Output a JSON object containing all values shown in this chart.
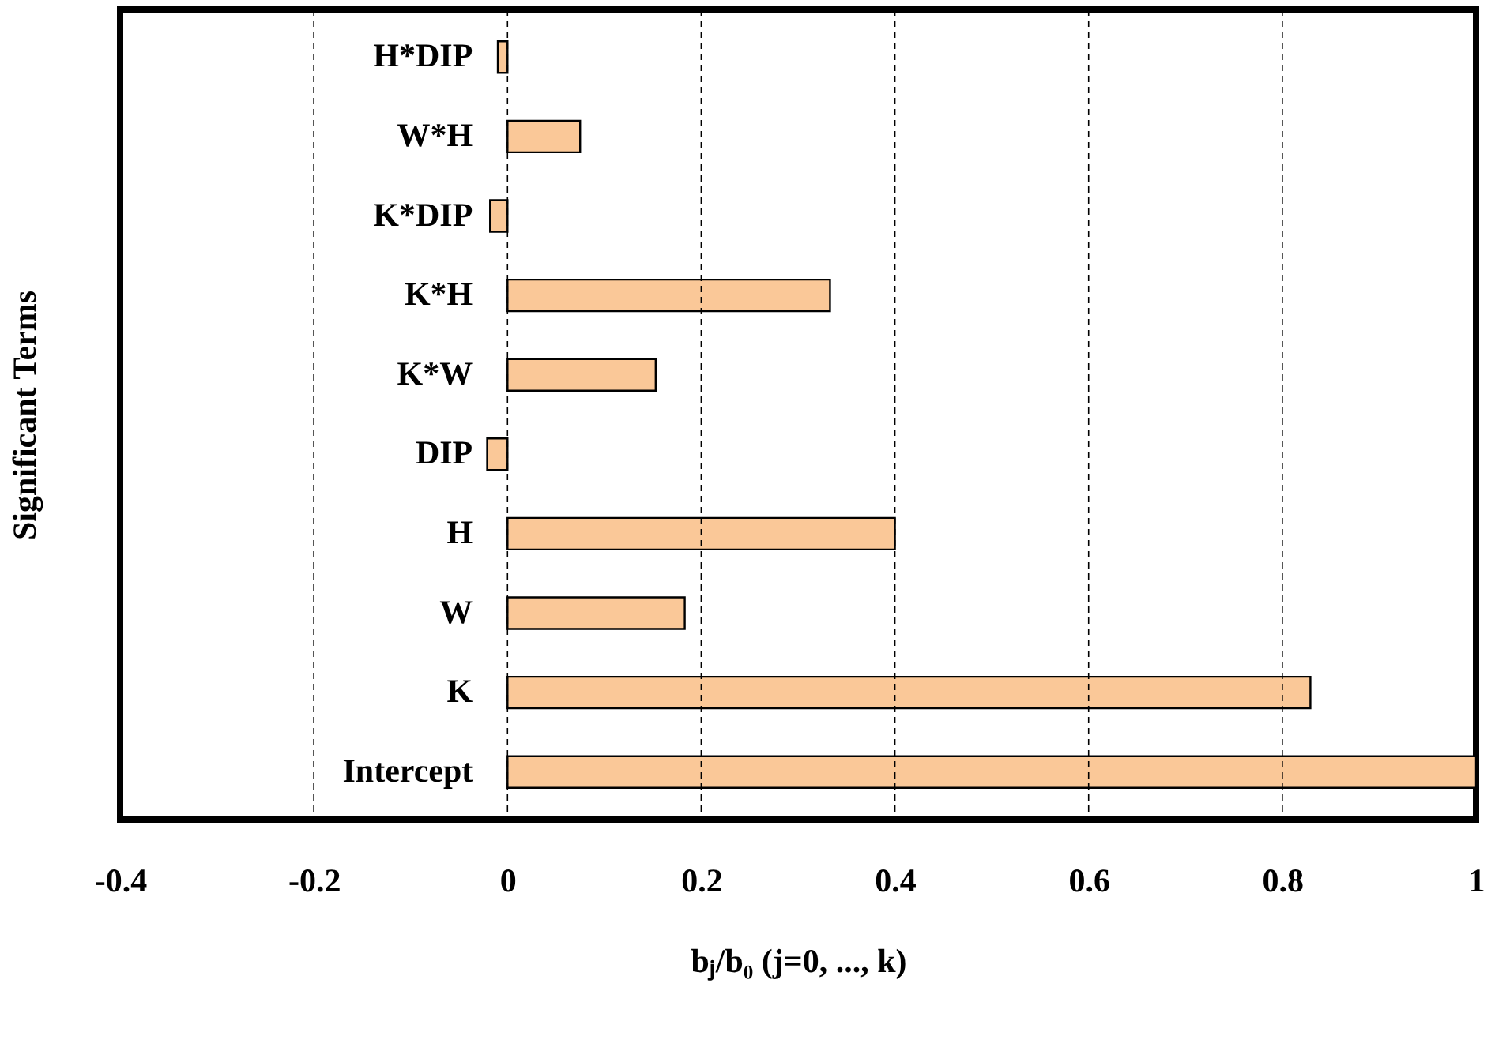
{
  "chart_data": {
    "type": "bar",
    "orientation": "horizontal",
    "categories": [
      "H*DIP",
      "W*H",
      "K*DIP",
      "K*H",
      "K*W",
      "DIP",
      "H",
      "W",
      "K",
      "Intercept"
    ],
    "values": [
      -0.01,
      0.075,
      -0.018,
      0.333,
      0.153,
      -0.021,
      0.4,
      0.183,
      0.829,
      1.0
    ],
    "color": "#fac898",
    "xlim": [
      -0.4,
      1
    ],
    "xticks": [
      -0.4,
      -0.2,
      0,
      0.2,
      0.4,
      0.6,
      0.8,
      1
    ],
    "xlabel": "bⱼ/b₀ (j=0, ..., k)",
    "ylabel": "Significant Terms",
    "grid": "x"
  }
}
